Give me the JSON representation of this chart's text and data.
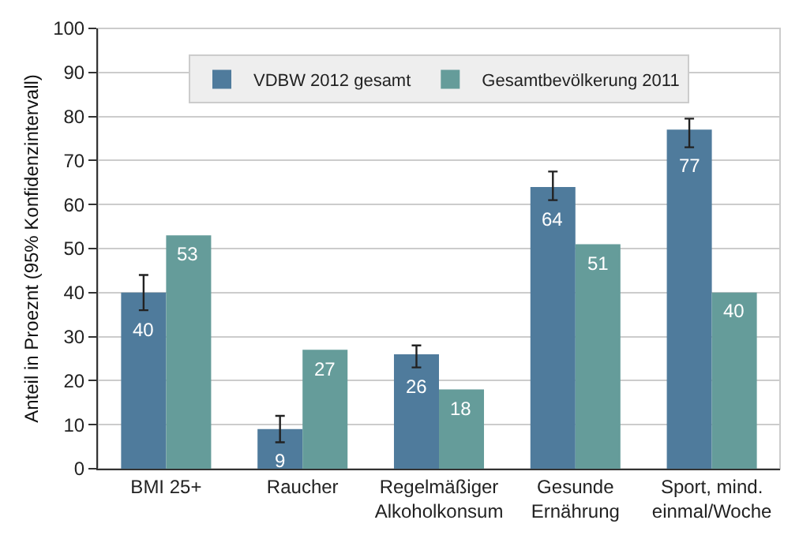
{
  "chart_data": {
    "type": "bar",
    "ylabel": "Anteil in Proeznt (95% Konfidenzintervall)",
    "categories": [
      "BMI 25+",
      "Raucher",
      "Regelmäßiger\nAlkoholkonsum",
      "Gesunde\nErnährung",
      "Sport, mind.\neinmal/Woche"
    ],
    "series": [
      {
        "name": "VDBW 2012 gesamt",
        "color": "#4f7b9c",
        "values": [
          40,
          9,
          26,
          64,
          77
        ],
        "errors": [
          [
            36,
            44
          ],
          [
            6,
            12
          ],
          [
            23,
            28
          ],
          [
            61,
            67.5
          ],
          [
            73,
            79.5
          ]
        ]
      },
      {
        "name": "Gesamtbevölkerung 2011",
        "color": "#659c9a",
        "values": [
          53,
          27,
          18,
          51,
          40
        ]
      }
    ],
    "ylim": [
      0,
      100
    ],
    "yticks": [
      0,
      10,
      20,
      30,
      40,
      50,
      60,
      70,
      80,
      90,
      100
    ],
    "grid": "y",
    "legend": "top",
    "data_labels": true
  }
}
